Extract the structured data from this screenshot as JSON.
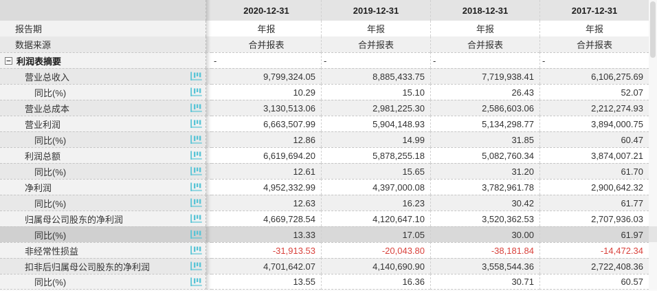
{
  "table": {
    "column_headers": [
      "2020-12-31",
      "2019-12-31",
      "2018-12-31",
      "2017-12-31"
    ],
    "meta_rows": [
      {
        "label": "报告期",
        "values": [
          "年报",
          "年报",
          "年报",
          "年报"
        ]
      },
      {
        "label": "数据来源",
        "values": [
          "合并报表",
          "合并报表",
          "合并报表",
          "合并报表"
        ]
      }
    ],
    "section_row": {
      "label": "利润表摘要",
      "collapse_icon": "minus-square-icon",
      "values": [
        "-",
        "-",
        "-",
        "-"
      ]
    },
    "data_rows": [
      {
        "label": "营业总收入",
        "indent": 1,
        "has_trend_icon": true,
        "values": [
          "9,799,324.05",
          "8,885,433.75",
          "7,719,938.41",
          "6,106,275.69"
        ]
      },
      {
        "label": "同比(%)",
        "indent": 2,
        "has_trend_icon": true,
        "values": [
          "10.29",
          "15.10",
          "26.43",
          "52.07"
        ]
      },
      {
        "label": "营业总成本",
        "indent": 1,
        "has_trend_icon": true,
        "values": [
          "3,130,513.06",
          "2,981,225.30",
          "2,586,603.06",
          "2,212,274.93"
        ]
      },
      {
        "label": "营业利润",
        "indent": 1,
        "has_trend_icon": true,
        "values": [
          "6,663,507.99",
          "5,904,148.93",
          "5,134,298.77",
          "3,894,000.75"
        ]
      },
      {
        "label": "同比(%)",
        "indent": 2,
        "has_trend_icon": true,
        "values": [
          "12.86",
          "14.99",
          "31.85",
          "60.47"
        ]
      },
      {
        "label": "利润总额",
        "indent": 1,
        "has_trend_icon": true,
        "values": [
          "6,619,694.20",
          "5,878,255.18",
          "5,082,760.34",
          "3,874,007.21"
        ]
      },
      {
        "label": "同比(%)",
        "indent": 2,
        "has_trend_icon": true,
        "values": [
          "12.61",
          "15.65",
          "31.20",
          "61.70"
        ]
      },
      {
        "label": "净利润",
        "indent": 1,
        "has_trend_icon": true,
        "values": [
          "4,952,332.99",
          "4,397,000.08",
          "3,782,961.78",
          "2,900,642.32"
        ]
      },
      {
        "label": "同比(%)",
        "indent": 2,
        "has_trend_icon": true,
        "values": [
          "12.63",
          "16.23",
          "30.42",
          "61.77"
        ]
      },
      {
        "label": "归属母公司股东的净利润",
        "indent": 1,
        "has_trend_icon": true,
        "values": [
          "4,669,728.54",
          "4,120,647.10",
          "3,520,362.53",
          "2,707,936.03"
        ]
      },
      {
        "label": "同比(%)",
        "indent": 2,
        "has_trend_icon": true,
        "highlighted": true,
        "values": [
          "13.33",
          "17.05",
          "30.00",
          "61.97"
        ]
      },
      {
        "label": "非经常性损益",
        "indent": 1,
        "has_trend_icon": true,
        "negative": true,
        "values": [
          "-31,913.53",
          "-20,043.80",
          "-38,181.84",
          "-14,472.34"
        ]
      },
      {
        "label": "扣非后归属母公司股东的净利润",
        "indent": 1,
        "has_trend_icon": true,
        "values": [
          "4,701,642.07",
          "4,140,690.90",
          "3,558,544.36",
          "2,722,408.36"
        ]
      },
      {
        "label": "同比(%)",
        "indent": 2,
        "has_trend_icon": true,
        "values": [
          "13.55",
          "16.36",
          "30.71",
          "60.57"
        ]
      }
    ],
    "colors": {
      "trend_icon": "#58c4d6",
      "negative_value": "#d9423c",
      "highlight_row": "#d9d9d9",
      "zebra_gray": "#f0f0f0",
      "header_bg": "#e4e4e4"
    }
  }
}
